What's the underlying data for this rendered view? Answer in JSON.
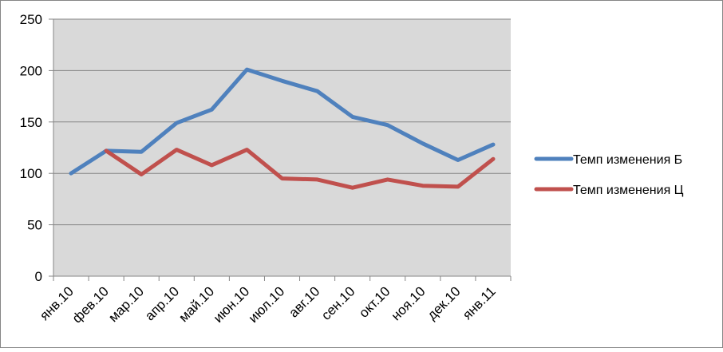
{
  "chart_data": {
    "type": "line",
    "title": "",
    "xlabel": "",
    "ylabel": "",
    "categories": [
      "янв.10",
      "фев.10",
      "мар.10",
      "апр.10",
      "май.10",
      "июн.10",
      "июл.10",
      "авг.10",
      "сен.10",
      "окт.10",
      "ноя.10",
      "дек.10",
      "янв.11"
    ],
    "ylim": [
      0,
      250
    ],
    "yticks": [
      0,
      50,
      100,
      150,
      200,
      250
    ],
    "grid": true,
    "legend_position": "right",
    "series": [
      {
        "name": "Темп изменения Б",
        "color": "#4F81BD",
        "values": [
          100,
          122,
          121,
          149,
          162,
          201,
          190,
          180,
          155,
          147,
          129,
          113,
          128
        ]
      },
      {
        "name": "Темп изменения Ц",
        "color": "#C0504D",
        "values": [
          null,
          122,
          99,
          123,
          108,
          123,
          95,
          94,
          86,
          94,
          88,
          87,
          114
        ]
      }
    ],
    "plot_background": "#D9D9D9"
  }
}
